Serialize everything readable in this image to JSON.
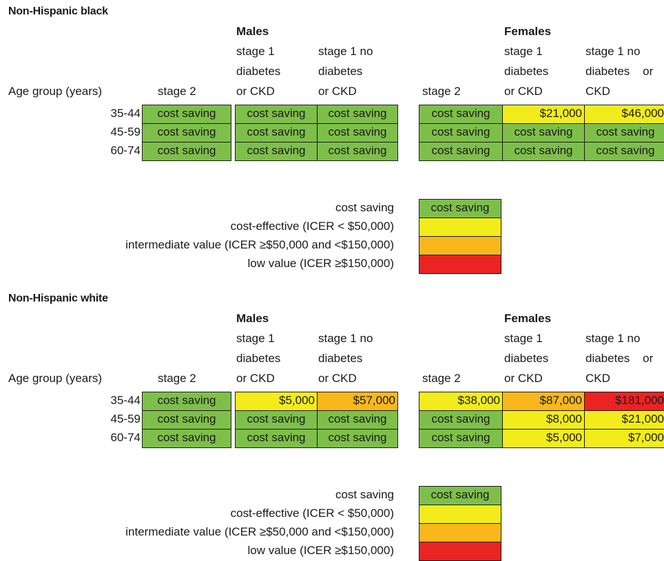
{
  "colors": {
    "cost_saving": "#7ebf4a",
    "cost_effective": "#f2ec1b",
    "intermediate": "#f8b81c",
    "low_value": "#ec2323"
  },
  "common": {
    "age_group_label": "Age group (years)",
    "males_label": "Males",
    "females_label": "Females",
    "col_headers": {
      "stage2": "stage 2",
      "stage1_dm": [
        "stage 1",
        "diabetes",
        "or CKD"
      ],
      "stage1_nodm": [
        "stage 1 no",
        "diabetes",
        "or CKD"
      ],
      "stage1_nodm_f": [
        "stage 1 no",
        "diabetes    or",
        "CKD"
      ]
    },
    "ages": [
      "35-44",
      "45-59",
      "60-74"
    ]
  },
  "legend": {
    "items": [
      {
        "label": "cost saving",
        "cell_text": "cost saving",
        "category": "cost_saving"
      },
      {
        "label": "cost-effective (ICER < $50,000)",
        "cell_text": "",
        "category": "cost_effective"
      },
      {
        "label": "intermediate value (ICER ≥$50,000 and <$150,000)",
        "cell_text": "",
        "category": "intermediate"
      },
      {
        "label": "low value (ICER ≥$150,000)",
        "cell_text": "",
        "category": "low_value"
      }
    ]
  },
  "chart_data": [
    {
      "type": "table",
      "title": "Non-Hispanic black",
      "row_header": "Age group (years)",
      "groups": [
        "Males",
        "Females"
      ],
      "columns": [
        "stage 2",
        "stage 1 diabetes or CKD",
        "stage 1 no diabetes or CKD"
      ],
      "rows": [
        "35-44",
        "45-59",
        "60-74"
      ],
      "males": [
        [
          {
            "text": "cost saving",
            "category": "cost_saving"
          },
          {
            "text": "cost saving",
            "category": "cost_saving"
          },
          {
            "text": "cost saving",
            "category": "cost_saving"
          }
        ],
        [
          {
            "text": "cost saving",
            "category": "cost_saving"
          },
          {
            "text": "cost saving",
            "category": "cost_saving"
          },
          {
            "text": "cost saving",
            "category": "cost_saving"
          }
        ],
        [
          {
            "text": "cost saving",
            "category": "cost_saving"
          },
          {
            "text": "cost saving",
            "category": "cost_saving"
          },
          {
            "text": "cost saving",
            "category": "cost_saving"
          }
        ]
      ],
      "females": [
        [
          {
            "text": "cost saving",
            "category": "cost_saving"
          },
          {
            "text": "$21,000",
            "category": "cost_effective"
          },
          {
            "text": "$46,000",
            "category": "cost_effective"
          }
        ],
        [
          {
            "text": "cost saving",
            "category": "cost_saving"
          },
          {
            "text": "cost saving",
            "category": "cost_saving"
          },
          {
            "text": "cost saving",
            "category": "cost_saving"
          }
        ],
        [
          {
            "text": "cost saving",
            "category": "cost_saving"
          },
          {
            "text": "cost saving",
            "category": "cost_saving"
          },
          {
            "text": "cost saving",
            "category": "cost_saving"
          }
        ]
      ]
    },
    {
      "type": "table",
      "title": "Non-Hispanic white",
      "row_header": "Age group (years)",
      "groups": [
        "Males",
        "Females"
      ],
      "columns": [
        "stage 2",
        "stage 1 diabetes or CKD",
        "stage 1 no diabetes or CKD"
      ],
      "rows": [
        "35-44",
        "45-59",
        "60-74"
      ],
      "males": [
        [
          {
            "text": "cost saving",
            "category": "cost_saving"
          },
          {
            "text": "$5,000",
            "category": "cost_effective"
          },
          {
            "text": "$57,000",
            "category": "intermediate"
          }
        ],
        [
          {
            "text": "cost saving",
            "category": "cost_saving"
          },
          {
            "text": "cost saving",
            "category": "cost_saving"
          },
          {
            "text": "cost saving",
            "category": "cost_saving"
          }
        ],
        [
          {
            "text": "cost saving",
            "category": "cost_saving"
          },
          {
            "text": "cost saving",
            "category": "cost_saving"
          },
          {
            "text": "cost saving",
            "category": "cost_saving"
          }
        ]
      ],
      "females": [
        [
          {
            "text": "$38,000",
            "category": "cost_effective"
          },
          {
            "text": "$87,000",
            "category": "intermediate"
          },
          {
            "text": "$181,000",
            "category": "low_value"
          }
        ],
        [
          {
            "text": "cost saving",
            "category": "cost_saving"
          },
          {
            "text": "$8,000",
            "category": "cost_effective"
          },
          {
            "text": "$21,000",
            "category": "cost_effective"
          }
        ],
        [
          {
            "text": "cost saving",
            "category": "cost_saving"
          },
          {
            "text": "$5,000",
            "category": "cost_effective"
          },
          {
            "text": "$7,000",
            "category": "cost_effective"
          }
        ]
      ]
    }
  ]
}
